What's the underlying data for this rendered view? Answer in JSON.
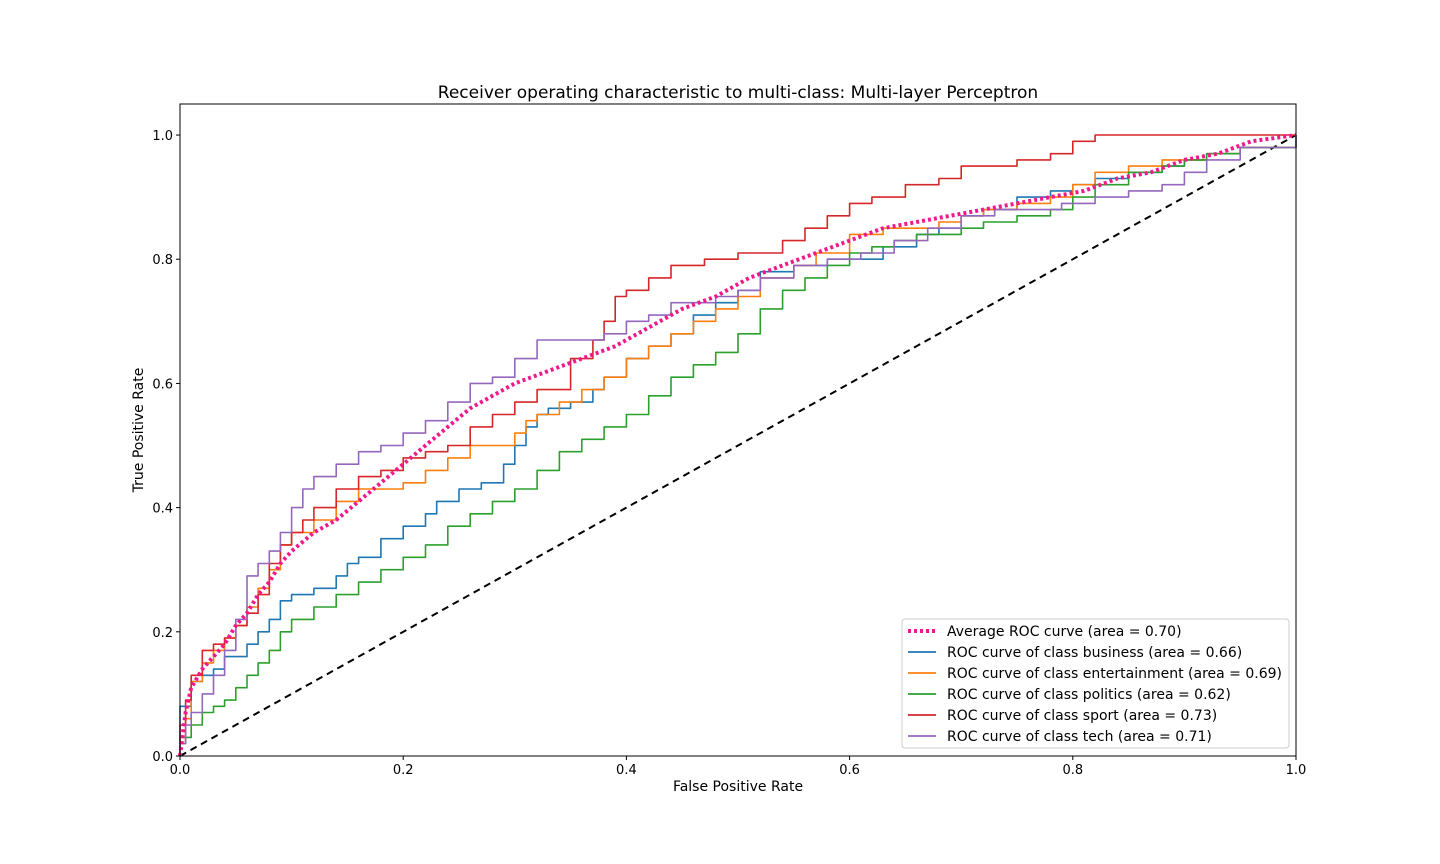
{
  "chart_data": {
    "type": "line",
    "title": "Receiver operating characteristic to multi-class: Multi-layer Perceptron",
    "xlabel": "False Positive Rate",
    "ylabel": "True Positive Rate",
    "xlim": [
      0.0,
      1.0
    ],
    "ylim": [
      0.0,
      1.05
    ],
    "xticks": [
      "0.0",
      "0.2",
      "0.4",
      "0.6",
      "0.8",
      "1.0"
    ],
    "yticks": [
      "0.0",
      "0.2",
      "0.4",
      "0.6",
      "0.8",
      "1.0"
    ],
    "grid": false,
    "legend_position": "lower right",
    "chance_line": {
      "x": [
        0,
        1
      ],
      "y": [
        0,
        1
      ],
      "color": "#000000",
      "style": "dashed"
    },
    "series": [
      {
        "name": "Average ROC curve (area = 0.70)",
        "color": "#f0198c",
        "style": "dotted",
        "x": [
          0,
          0.005,
          0.01,
          0.02,
          0.03,
          0.04,
          0.05,
          0.06,
          0.07,
          0.08,
          0.09,
          0.1,
          0.12,
          0.14,
          0.16,
          0.18,
          0.2,
          0.22,
          0.24,
          0.26,
          0.28,
          0.3,
          0.33,
          0.36,
          0.39,
          0.42,
          0.45,
          0.48,
          0.51,
          0.54,
          0.57,
          0.6,
          0.63,
          0.66,
          0.69,
          0.72,
          0.75,
          0.78,
          0.81,
          0.84,
          0.87,
          0.9,
          0.93,
          0.96,
          1.0
        ],
        "y": [
          0,
          0.07,
          0.11,
          0.14,
          0.16,
          0.18,
          0.21,
          0.23,
          0.26,
          0.28,
          0.31,
          0.33,
          0.36,
          0.38,
          0.41,
          0.44,
          0.47,
          0.5,
          0.53,
          0.56,
          0.58,
          0.6,
          0.62,
          0.64,
          0.66,
          0.69,
          0.72,
          0.74,
          0.77,
          0.79,
          0.81,
          0.83,
          0.85,
          0.86,
          0.87,
          0.88,
          0.89,
          0.9,
          0.91,
          0.93,
          0.94,
          0.96,
          0.97,
          0.99,
          1.0
        ]
      },
      {
        "name": "ROC curve of class business (area = 0.66)",
        "color": "#1f77b4",
        "style": "solid",
        "x": [
          0,
          0,
          0.01,
          0.01,
          0.02,
          0.03,
          0.04,
          0.05,
          0.06,
          0.07,
          0.08,
          0.09,
          0.1,
          0.12,
          0.14,
          0.15,
          0.16,
          0.18,
          0.2,
          0.22,
          0.23,
          0.25,
          0.27,
          0.29,
          0.3,
          0.31,
          0.32,
          0.33,
          0.35,
          0.37,
          0.38,
          0.4,
          0.42,
          0.44,
          0.46,
          0.48,
          0.5,
          0.52,
          0.55,
          0.58,
          0.61,
          0.63,
          0.66,
          0.68,
          0.7,
          0.72,
          0.75,
          0.78,
          0.8,
          0.82,
          0.85,
          0.88,
          0.9,
          0.92,
          0.95,
          1.0
        ],
        "y": [
          0,
          0.08,
          0.08,
          0.12,
          0.13,
          0.14,
          0.16,
          0.16,
          0.18,
          0.2,
          0.22,
          0.25,
          0.26,
          0.27,
          0.29,
          0.31,
          0.32,
          0.35,
          0.37,
          0.39,
          0.41,
          0.43,
          0.44,
          0.47,
          0.5,
          0.53,
          0.55,
          0.56,
          0.57,
          0.59,
          0.61,
          0.64,
          0.66,
          0.68,
          0.71,
          0.73,
          0.75,
          0.78,
          0.79,
          0.8,
          0.8,
          0.82,
          0.84,
          0.85,
          0.87,
          0.88,
          0.9,
          0.91,
          0.92,
          0.93,
          0.94,
          0.95,
          0.96,
          0.97,
          0.98,
          1.0
        ]
      },
      {
        "name": "ROC curve of class entertainment (area = 0.69)",
        "color": "#ff7f0e",
        "style": "solid",
        "x": [
          0,
          0,
          0.005,
          0.01,
          0.02,
          0.03,
          0.04,
          0.05,
          0.06,
          0.07,
          0.08,
          0.09,
          0.1,
          0.12,
          0.14,
          0.16,
          0.18,
          0.2,
          0.22,
          0.24,
          0.26,
          0.28,
          0.3,
          0.31,
          0.32,
          0.34,
          0.36,
          0.38,
          0.4,
          0.42,
          0.44,
          0.46,
          0.48,
          0.5,
          0.52,
          0.55,
          0.57,
          0.6,
          0.63,
          0.66,
          0.68,
          0.7,
          0.72,
          0.75,
          0.78,
          0.8,
          0.82,
          0.85,
          0.88,
          0.9,
          0.92,
          0.95,
          1.0
        ],
        "y": [
          0,
          0.02,
          0.06,
          0.12,
          0.15,
          0.17,
          0.19,
          0.21,
          0.24,
          0.27,
          0.3,
          0.34,
          0.36,
          0.38,
          0.41,
          0.43,
          0.43,
          0.44,
          0.46,
          0.48,
          0.5,
          0.5,
          0.52,
          0.54,
          0.55,
          0.57,
          0.59,
          0.61,
          0.64,
          0.66,
          0.68,
          0.7,
          0.72,
          0.74,
          0.77,
          0.79,
          0.81,
          0.84,
          0.85,
          0.85,
          0.86,
          0.87,
          0.88,
          0.89,
          0.9,
          0.92,
          0.94,
          0.95,
          0.96,
          0.96,
          0.97,
          0.98,
          0.99
        ]
      },
      {
        "name": "ROC curve of class politics (area = 0.62)",
        "color": "#2ca02c",
        "style": "solid",
        "x": [
          0,
          0,
          0.01,
          0.02,
          0.03,
          0.04,
          0.05,
          0.06,
          0.07,
          0.08,
          0.09,
          0.1,
          0.12,
          0.14,
          0.16,
          0.18,
          0.2,
          0.22,
          0.24,
          0.26,
          0.28,
          0.3,
          0.32,
          0.34,
          0.36,
          0.38,
          0.4,
          0.42,
          0.44,
          0.46,
          0.48,
          0.5,
          0.52,
          0.54,
          0.56,
          0.58,
          0.6,
          0.62,
          0.64,
          0.66,
          0.68,
          0.7,
          0.72,
          0.75,
          0.78,
          0.8,
          0.82,
          0.85,
          0.88,
          0.9,
          0.92,
          0.95,
          1.0
        ],
        "y": [
          0,
          0.03,
          0.05,
          0.07,
          0.08,
          0.09,
          0.11,
          0.13,
          0.15,
          0.17,
          0.2,
          0.22,
          0.24,
          0.26,
          0.28,
          0.3,
          0.32,
          0.34,
          0.37,
          0.39,
          0.41,
          0.43,
          0.46,
          0.49,
          0.51,
          0.53,
          0.55,
          0.58,
          0.61,
          0.63,
          0.65,
          0.68,
          0.72,
          0.75,
          0.77,
          0.79,
          0.81,
          0.82,
          0.83,
          0.84,
          0.84,
          0.85,
          0.86,
          0.87,
          0.88,
          0.9,
          0.92,
          0.94,
          0.95,
          0.96,
          0.97,
          0.98,
          1.0
        ]
      },
      {
        "name": "ROC curve of class sport (area = 0.73)",
        "color": "#d62728",
        "style": "solid",
        "x": [
          0,
          0,
          0.005,
          0.01,
          0.02,
          0.03,
          0.04,
          0.05,
          0.06,
          0.07,
          0.08,
          0.09,
          0.1,
          0.11,
          0.12,
          0.14,
          0.16,
          0.18,
          0.2,
          0.22,
          0.24,
          0.26,
          0.28,
          0.3,
          0.32,
          0.35,
          0.37,
          0.38,
          0.39,
          0.4,
          0.42,
          0.44,
          0.47,
          0.5,
          0.52,
          0.54,
          0.56,
          0.58,
          0.6,
          0.62,
          0.65,
          0.68,
          0.7,
          0.75,
          0.78,
          0.8,
          0.82,
          0.84,
          0.86,
          0.88,
          0.9,
          0.93,
          0.96,
          1.0
        ],
        "y": [
          0,
          0.05,
          0.09,
          0.13,
          0.17,
          0.18,
          0.19,
          0.21,
          0.23,
          0.26,
          0.31,
          0.34,
          0.36,
          0.38,
          0.4,
          0.43,
          0.45,
          0.46,
          0.48,
          0.49,
          0.5,
          0.53,
          0.55,
          0.57,
          0.59,
          0.64,
          0.67,
          0.7,
          0.74,
          0.75,
          0.77,
          0.79,
          0.8,
          0.81,
          0.81,
          0.83,
          0.85,
          0.87,
          0.89,
          0.9,
          0.92,
          0.93,
          0.95,
          0.96,
          0.97,
          0.99,
          1.0,
          1.0,
          1.0,
          1.0,
          1.0,
          1.0,
          1.0,
          1.0
        ]
      },
      {
        "name": "ROC curve of class tech (area = 0.71)",
        "color": "#9467bd",
        "style": "solid",
        "x": [
          0,
          0,
          0.005,
          0.01,
          0.02,
          0.03,
          0.04,
          0.05,
          0.06,
          0.07,
          0.08,
          0.09,
          0.1,
          0.11,
          0.12,
          0.14,
          0.16,
          0.18,
          0.2,
          0.22,
          0.24,
          0.26,
          0.28,
          0.3,
          0.32,
          0.34,
          0.36,
          0.38,
          0.4,
          0.42,
          0.44,
          0.46,
          0.48,
          0.5,
          0.52,
          0.55,
          0.58,
          0.61,
          0.64,
          0.67,
          0.7,
          0.73,
          0.76,
          0.79,
          0.82,
          0.85,
          0.88,
          0.9,
          0.92,
          0.95,
          1.0
        ],
        "y": [
          0,
          0.02,
          0.05,
          0.07,
          0.1,
          0.13,
          0.17,
          0.22,
          0.29,
          0.31,
          0.33,
          0.36,
          0.4,
          0.43,
          0.45,
          0.47,
          0.49,
          0.5,
          0.52,
          0.54,
          0.57,
          0.6,
          0.61,
          0.64,
          0.67,
          0.67,
          0.67,
          0.68,
          0.7,
          0.71,
          0.73,
          0.73,
          0.74,
          0.75,
          0.77,
          0.79,
          0.8,
          0.81,
          0.83,
          0.85,
          0.87,
          0.88,
          0.88,
          0.89,
          0.9,
          0.91,
          0.92,
          0.94,
          0.96,
          0.98,
          1.0
        ]
      }
    ]
  }
}
